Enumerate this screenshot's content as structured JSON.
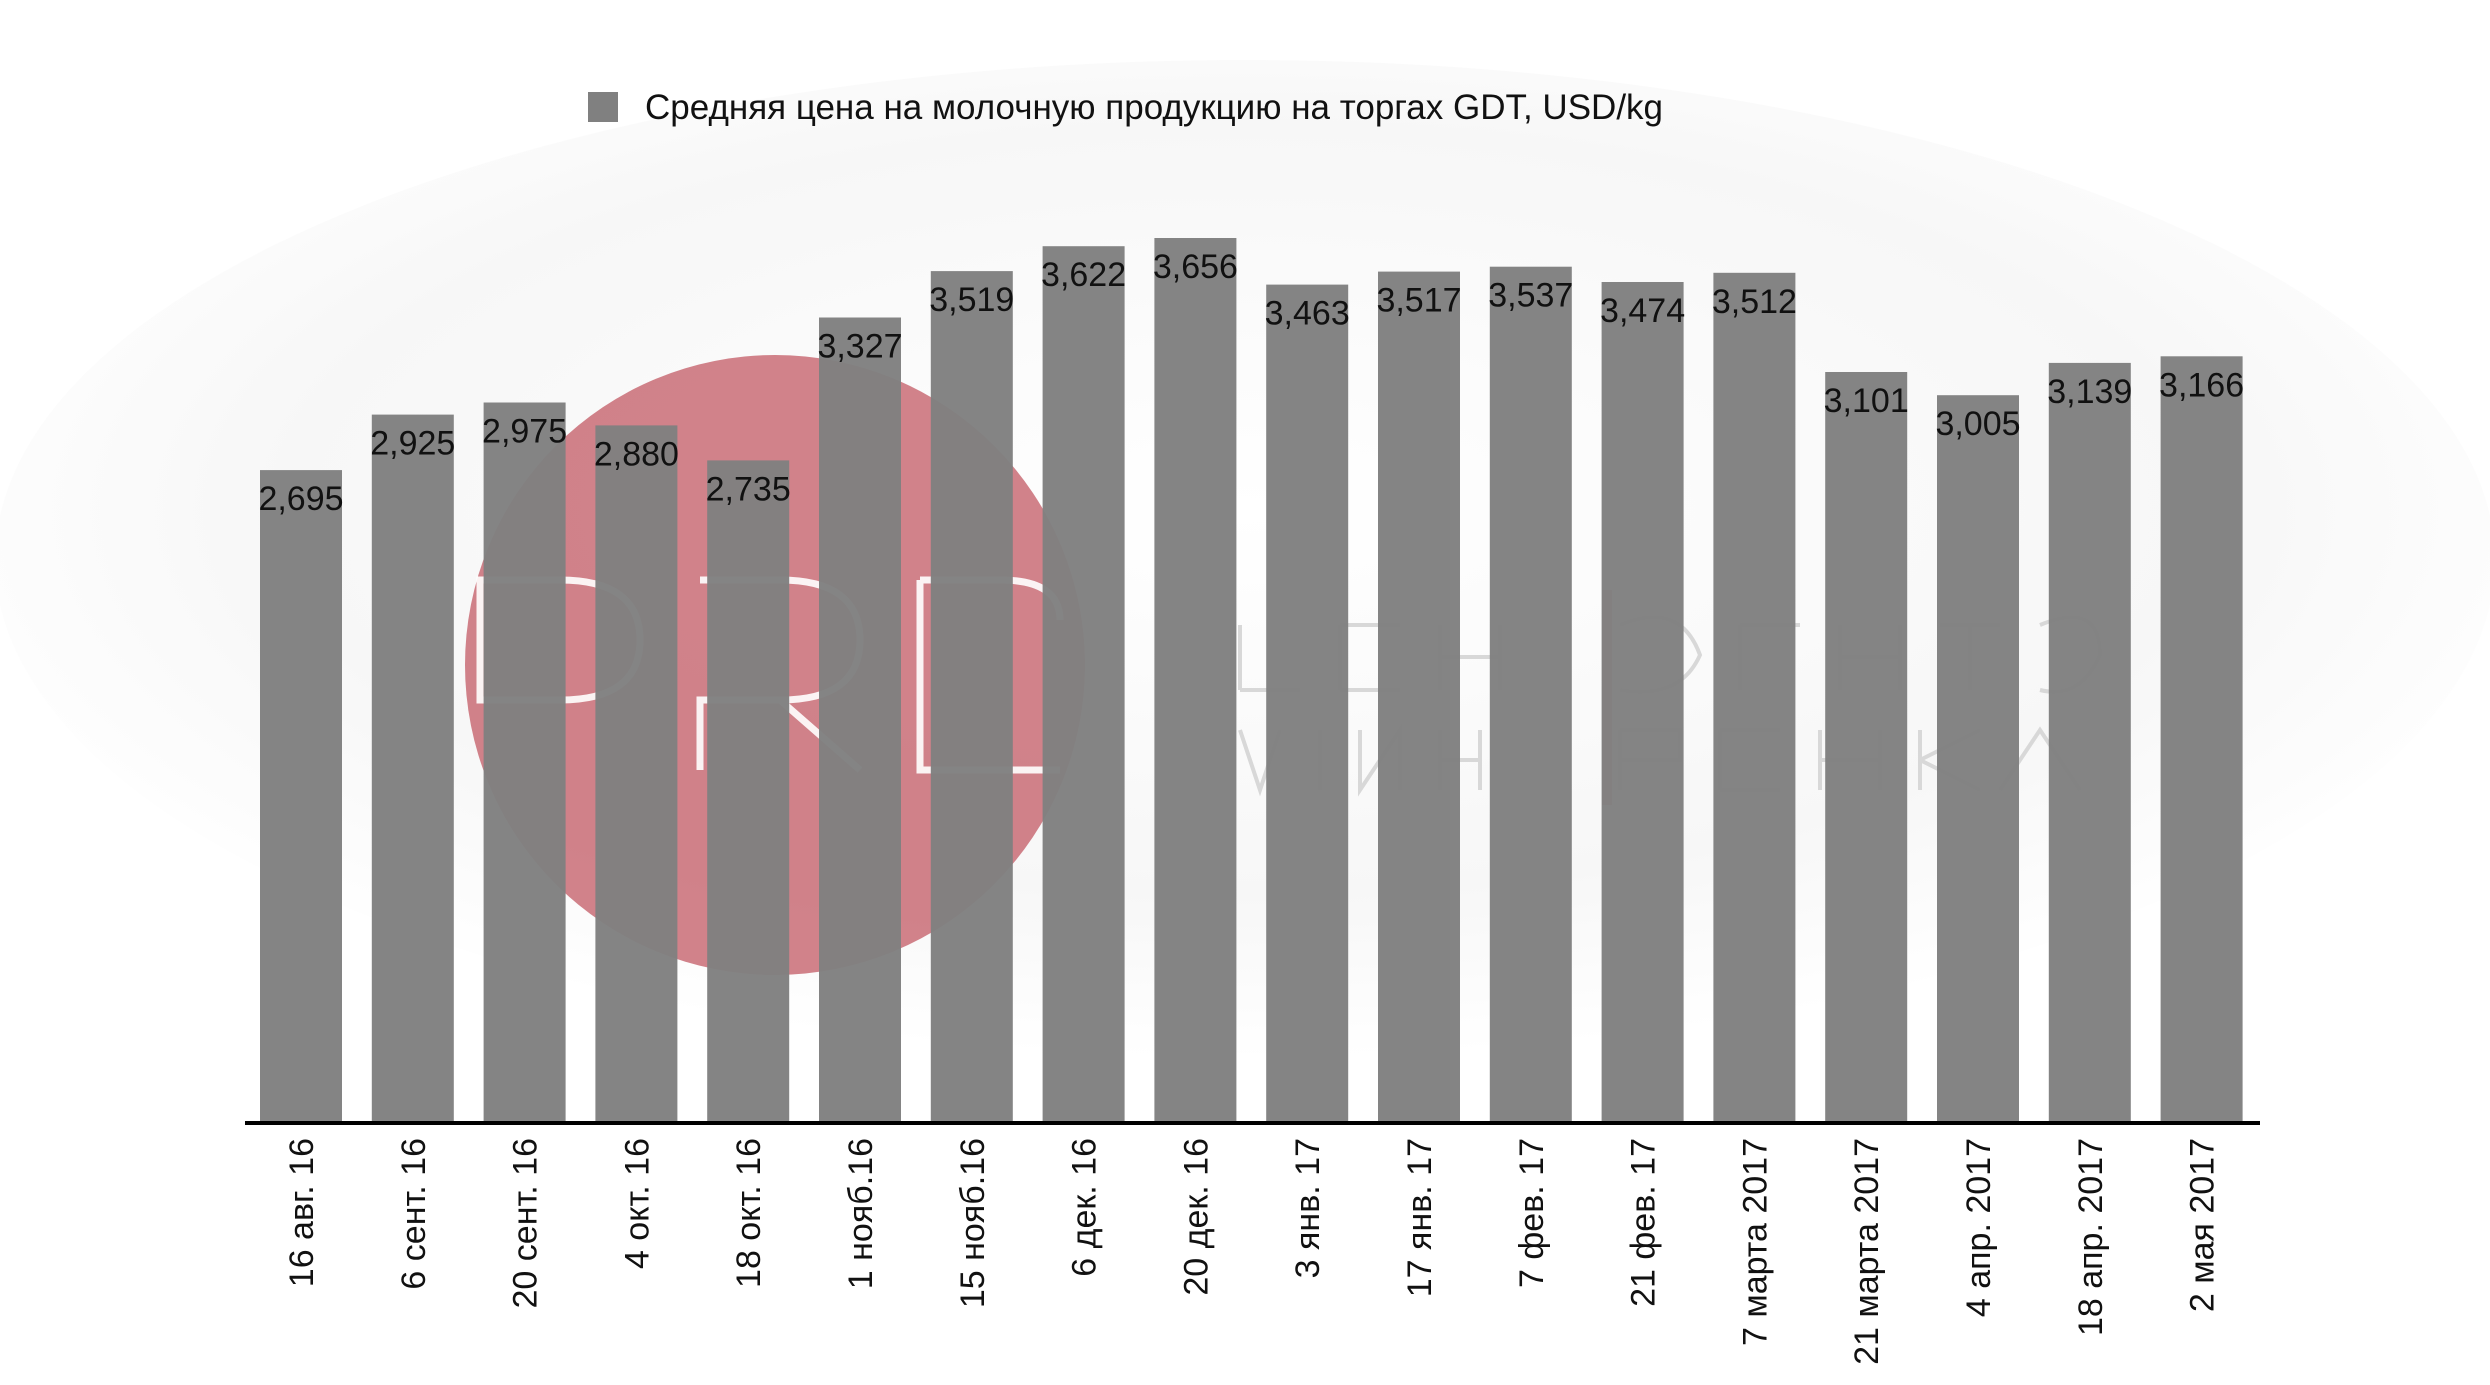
{
  "legend": {
    "label": "Средняя цена на молочную продукцию на торгах GDT,  USD/kg",
    "color": "#808080"
  },
  "watermark": {
    "color": "#c96c76",
    "text_row1": "ЦЕНТР ФОРМИРОВАНИЯ",
    "text_row2": "ЦЕНТР МОЛОЧНОГО РЫНКА"
  },
  "chart_data": {
    "type": "bar",
    "categories": [
      "16 авг. 16",
      "6 сент. 16",
      "20 сент. 16",
      "4 окт. 16",
      "18 окт. 16",
      "1 нояб.16",
      "15 нояб.16",
      "6 дек. 16",
      "20 дек. 16",
      "3 янв. 17",
      "17 янв. 17",
      "7 фев. 17",
      "21 фев.  17",
      "7 марта 2017",
      "21 марта 2017",
      "4 апр. 2017",
      "18 апр. 2017",
      "2 мая 2017"
    ],
    "series": [
      {
        "name": "Средняя цена на молочную продукцию на торгах GDT,  USD/kg",
        "values": [
          2.695,
          2.925,
          2.975,
          2.88,
          2.735,
          3.327,
          3.519,
          3.622,
          3.656,
          3.463,
          3.517,
          3.537,
          3.474,
          3.512,
          3.101,
          3.005,
          3.139,
          3.166
        ],
        "labels": [
          "2,695",
          "2,925",
          "2,975",
          "2,880",
          "2,735",
          "3,327",
          "3,519",
          "3,622",
          "3,656",
          "3,463",
          "3,517",
          "3,537",
          "3,474",
          "3,512",
          "3,101",
          "3,005",
          "3,139",
          "3,166"
        ]
      }
    ],
    "title": "",
    "xlabel": "",
    "ylabel": "",
    "ylim": [
      0,
      3.656
    ],
    "grid": false,
    "legend_position": "top-center",
    "bar_color": "#808080"
  }
}
